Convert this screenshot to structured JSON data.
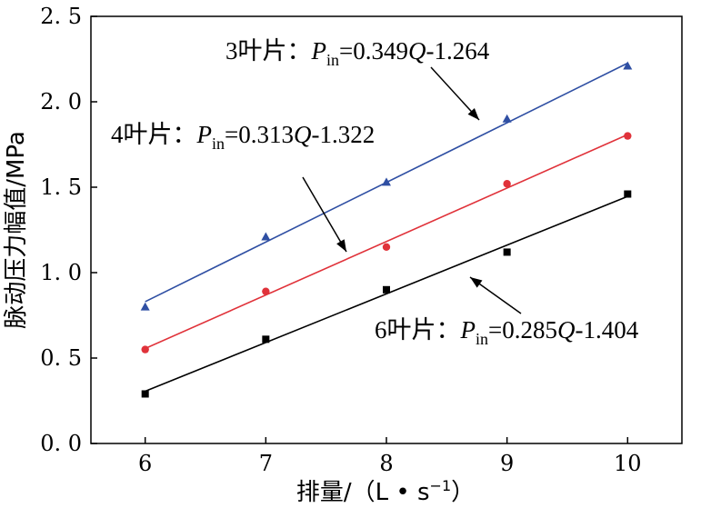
{
  "chart_data": {
    "type": "scatter",
    "xlabel_parts": [
      "排量/（L • s",
      "−1",
      "）"
    ],
    "ylabel": "脉动压力幅值/MPa",
    "xlim": [
      5.55,
      10.45
    ],
    "ylim": [
      0.0,
      2.5
    ],
    "xticks": [
      "6",
      "7",
      "8",
      "9",
      "10"
    ],
    "yticks": [
      "0. 0",
      "0. 5",
      "1. 0",
      "1. 5",
      "2. 0",
      "2. 5"
    ],
    "series": [
      {
        "name": "3叶片",
        "color": "#2f4fa3",
        "marker": "triangle",
        "x": [
          6,
          7,
          8,
          9,
          10
        ],
        "y": [
          0.8,
          1.21,
          1.53,
          1.9,
          2.21
        ],
        "fit": {
          "slope": 0.349,
          "intercept": -1.264
        },
        "equation": {
          "prefix": "3叶片：",
          "var": "P",
          "sub": "in",
          "eq": "=0.349",
          "q": "Q",
          "tail": "-1.264"
        }
      },
      {
        "name": "4叶片",
        "color": "#e0323a",
        "marker": "circle",
        "x": [
          6,
          7,
          8,
          9,
          10
        ],
        "y": [
          0.55,
          0.89,
          1.15,
          1.52,
          1.8
        ],
        "fit": {
          "slope": 0.313,
          "intercept": -1.322
        },
        "equation": {
          "prefix": "4叶片：",
          "var": "P",
          "sub": "in",
          "eq": "=0.313",
          "q": "Q",
          "tail": "-1.322"
        }
      },
      {
        "name": "6叶片",
        "color": "#000000",
        "marker": "square",
        "x": [
          6,
          7,
          8,
          9,
          10
        ],
        "y": [
          0.29,
          0.61,
          0.9,
          1.12,
          1.46
        ],
        "fit": {
          "slope": 0.285,
          "intercept": -1.404
        },
        "equation": {
          "prefix": "6叶片：",
          "var": "P",
          "sub": "in",
          "eq": "=0.285",
          "q": "Q",
          "tail": "-1.404"
        }
      }
    ]
  }
}
